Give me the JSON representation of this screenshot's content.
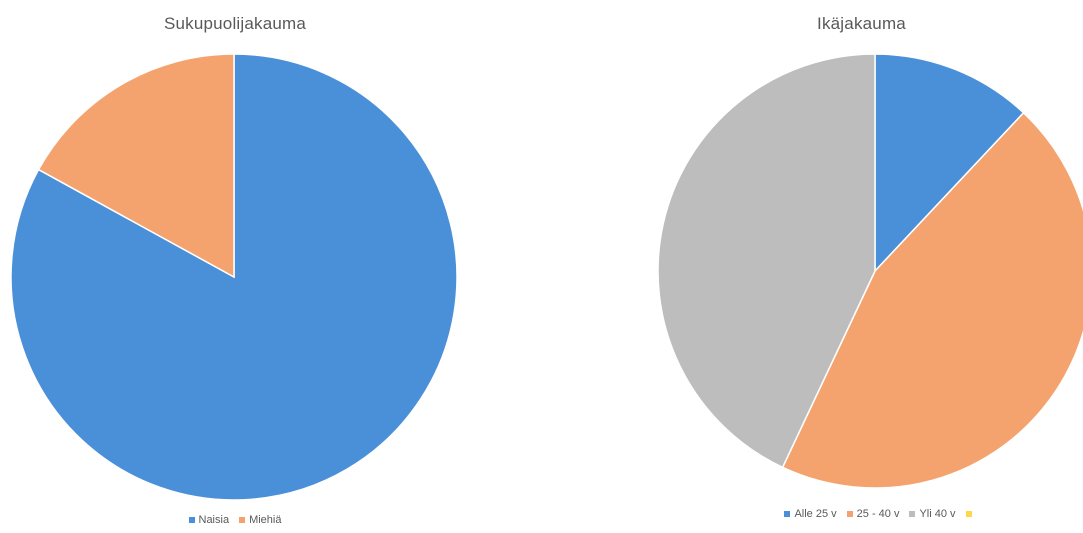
{
  "chart_data": [
    {
      "type": "pie",
      "title": "Sukupuolijakauma",
      "categories": [
        "Naisia",
        "Miehiä"
      ],
      "values": [
        83,
        17
      ],
      "colors": [
        "#4a90d9",
        "#f4a36e"
      ]
    },
    {
      "type": "pie",
      "title": "Ikäjakauma",
      "categories": [
        "Alle 25 v",
        "25 - 40 v",
        "Yli 40 v",
        ""
      ],
      "values": [
        12,
        45,
        43,
        0
      ],
      "colors": [
        "#4a90d9",
        "#f4a36e",
        "#bdbdbd",
        "#ffd84a"
      ]
    }
  ]
}
